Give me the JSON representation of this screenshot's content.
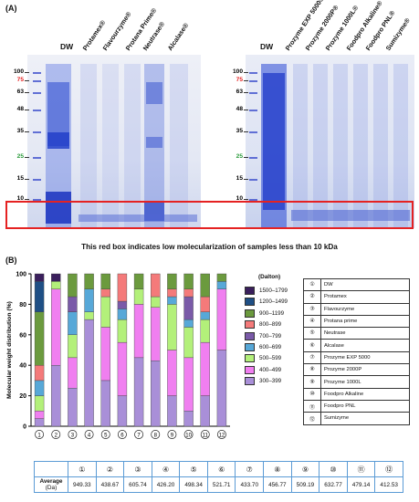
{
  "panel_a": {
    "label": "(A)",
    "left_gel": {
      "lanes": [
        "DW",
        "Protamex®",
        "Flavourzyme®",
        "Protana Prime®",
        "Neutrase®",
        "Alcalase®"
      ],
      "markers": [
        "100",
        "75",
        "63",
        "48",
        "35",
        "25",
        "15",
        "10"
      ]
    },
    "right_gel": {
      "lanes": [
        "DW",
        "Prozyme EXP 5000®",
        "Prozyme 2000P®",
        "Prozyme 1000L®",
        "Foodpro Alkaline®",
        "Foodpro PNL®",
        "Sumizyme®"
      ],
      "markers": [
        "100",
        "75",
        "63",
        "48",
        "35",
        "25",
        "15",
        "10"
      ]
    },
    "caption": "This red box indicates low molecularization of samples less than 10 kDa"
  },
  "panel_b": {
    "label": "(B)",
    "sample_table": [
      {
        "num": "①",
        "name": "DW"
      },
      {
        "num": "②",
        "name": "Protamex"
      },
      {
        "num": "③",
        "name": "Flavourzyme"
      },
      {
        "num": "④",
        "name": "Protana prime"
      },
      {
        "num": "⑤",
        "name": "Neutrase"
      },
      {
        "num": "⑥",
        "name": "Alcalase"
      },
      {
        "num": "⑦",
        "name": "Prozyme EXP 5000"
      },
      {
        "num": "⑧",
        "name": "Prozyme 2000P"
      },
      {
        "num": "⑨",
        "name": "Prozyme 1000L"
      },
      {
        "num": "⑩",
        "name": "Foodpro Alkaline"
      },
      {
        "num": "⑪",
        "name": "Foodpro PNL"
      },
      {
        "num": "⑫",
        "name": "Sumizyme"
      }
    ],
    "average_table": {
      "row_label": "Average",
      "row_unit": "(Da)",
      "headers": [
        "①",
        "②",
        "③",
        "④",
        "⑤",
        "⑥",
        "⑦",
        "⑧",
        "⑨",
        "⑩",
        "⑪",
        "⑫"
      ],
      "values": [
        "949.33",
        "438.67",
        "605.74",
        "426.20",
        "498.34",
        "521.71",
        "433.70",
        "456.77",
        "509.19",
        "632.77",
        "479.14",
        "412.53"
      ]
    }
  },
  "chart_data": {
    "type": "bar",
    "stacked": true,
    "title": "",
    "xlabel": "",
    "ylabel": "Molecular weight distribution (%)",
    "ylim": [
      0,
      100
    ],
    "yticks": [
      "0",
      "20",
      "40",
      "60",
      "80",
      "100"
    ],
    "categories": [
      "①",
      "②",
      "③",
      "④",
      "⑤",
      "⑥",
      "⑦",
      "⑧",
      "⑨",
      "⑩",
      "⑪",
      "⑫"
    ],
    "legend_title": "(Dalton)",
    "legend_position": "right",
    "series": [
      {
        "name": "300–399",
        "color": "#a98fd8",
        "values": [
          5,
          40,
          25,
          70,
          30,
          20,
          45,
          43,
          20,
          10,
          20,
          50
        ]
      },
      {
        "name": "400–499",
        "color": "#f07ff0",
        "values": [
          5,
          50,
          20,
          0,
          35,
          35,
          35,
          35,
          30,
          35,
          35,
          40
        ]
      },
      {
        "name": "500–599",
        "color": "#b3f07a",
        "values": [
          10,
          5,
          15,
          5,
          20,
          15,
          10,
          7,
          30,
          20,
          15,
          0
        ]
      },
      {
        "name": "600–699",
        "color": "#57a8d8",
        "values": [
          10,
          0,
          15,
          15,
          0,
          7,
          0,
          0,
          5,
          5,
          5,
          5
        ]
      },
      {
        "name": "700–799",
        "color": "#7a5aa8",
        "values": [
          0,
          0,
          10,
          0,
          0,
          5,
          0,
          0,
          0,
          15,
          0,
          0
        ]
      },
      {
        "name": "800–899",
        "color": "#f47a7a",
        "values": [
          10,
          0,
          0,
          0,
          5,
          18,
          0,
          15,
          5,
          5,
          10,
          0
        ]
      },
      {
        "name": "900–1199",
        "color": "#6b9a3e",
        "values": [
          35,
          0,
          15,
          10,
          10,
          0,
          10,
          0,
          10,
          10,
          15,
          5
        ]
      },
      {
        "name": "1200–1499",
        "color": "#1f4f85",
        "values": [
          20,
          0,
          0,
          0,
          0,
          0,
          0,
          0,
          0,
          0,
          0,
          0
        ]
      },
      {
        "name": "1500–1799",
        "color": "#3a1f5c",
        "values": [
          5,
          5,
          0,
          0,
          0,
          0,
          0,
          0,
          0,
          0,
          0,
          0
        ]
      }
    ]
  },
  "colors": {
    "highlight_box": "#e52222",
    "gel_stain": "#2f4fd6",
    "table_border": "#5b9bd5"
  }
}
